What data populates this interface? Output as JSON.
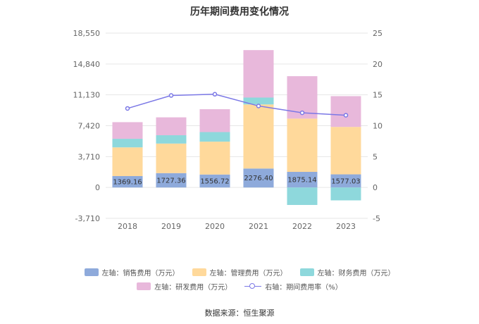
{
  "title": "历年期间费用变化情况",
  "source": "数据来源：恒生聚源",
  "chart_data": {
    "type": "bar",
    "stacked": true,
    "title": "历年期间费用变化情况",
    "categories": [
      "2018",
      "2019",
      "2020",
      "2021",
      "2022",
      "2023"
    ],
    "left_axis": {
      "ylim": [
        -3710,
        18550
      ],
      "ticks": [
        "18,550",
        "14,840",
        "11,130",
        "7,420",
        "3,710",
        "0",
        "-3,710"
      ]
    },
    "right_axis": {
      "ylim": [
        -5,
        25
      ],
      "ticks": [
        "25",
        "20",
        "15",
        "10",
        "5",
        "0",
        "-5"
      ]
    },
    "series": [
      {
        "name": "左轴：销售费用（万元）",
        "type": "bar",
        "color": "#8eaadb",
        "values": [
          1369.16,
          1727.36,
          1556.72,
          2276.4,
          1875.14,
          1577.03
        ],
        "labels": [
          "1369.16",
          "1727.36",
          "1556.72",
          "2276.40",
          "1875.14",
          "1577.03"
        ]
      },
      {
        "name": "左轴：管理费用（万元）",
        "type": "bar",
        "color": "#ffd99b",
        "values": [
          3450,
          3550,
          3950,
          7700,
          6400,
          5700
        ]
      },
      {
        "name": "左轴：财务费用（万元）",
        "type": "bar",
        "color": "#8ed8dc",
        "values": [
          1030,
          1000,
          1150,
          830,
          -2100,
          -1550
        ]
      },
      {
        "name": "左轴：研发费用（万元）",
        "type": "bar",
        "color": "#e8b8db",
        "values": [
          2000,
          2150,
          2750,
          5700,
          5100,
          3700
        ]
      },
      {
        "name": "右轴：期间费用率（%）",
        "type": "line",
        "axis": "right",
        "color": "#7b78e6",
        "values": [
          12.8,
          14.9,
          15.1,
          13.2,
          12.1,
          11.7
        ]
      }
    ],
    "legend_position": "bottom",
    "grid": true
  }
}
